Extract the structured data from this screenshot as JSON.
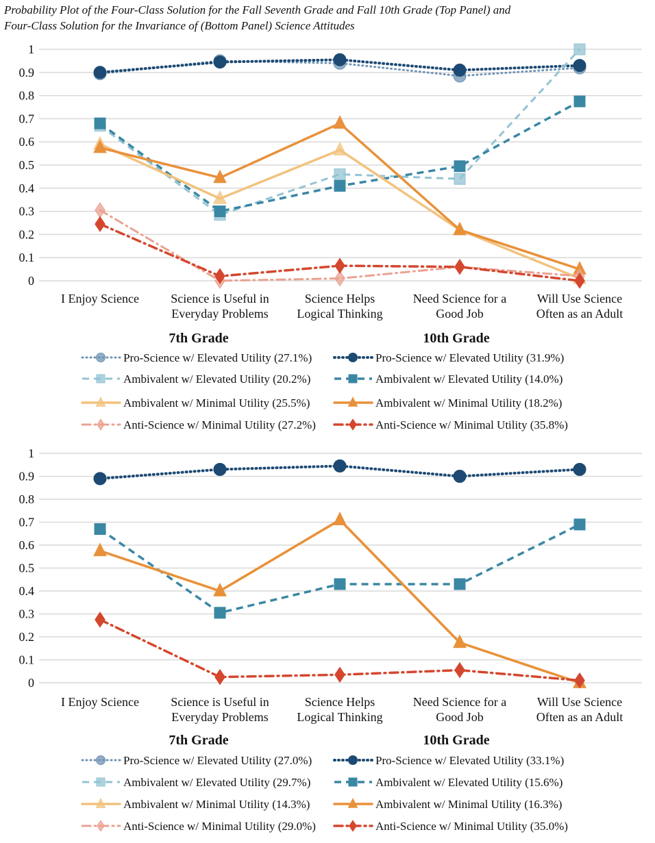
{
  "title_lines": [
    "Probability Plot of the Four-Class Solution for the Fall Seventh Grade and Fall 10th Grade (Top Panel) and",
    "Four-Class Solution for the Invariance of (Bottom Panel) Science Attitudes"
  ],
  "chart_data": [
    {
      "type": "line",
      "panel": "top",
      "categories": [
        [
          "I Enjoy Science"
        ],
        [
          "Science is Useful in",
          "Everyday Problems"
        ],
        [
          "Science Helps",
          "Logical Thinking"
        ],
        [
          "Need Science for a",
          "Good Job"
        ],
        [
          "Will Use Science",
          "Often as an Adult"
        ]
      ],
      "ylim": [
        0,
        1
      ],
      "yticks": [
        "0",
        "0.1",
        "0.2",
        "0.3",
        "0.4",
        "0.5",
        "0.6",
        "0.7",
        "0.8",
        "0.9",
        "1"
      ],
      "grid": true,
      "group_labels": [
        "7th Grade",
        "10th Grade"
      ],
      "legend_placement": "bottom",
      "series": [
        {
          "name": "Pro-Science w/ Elevated Utility (27.1%)",
          "group": "7th",
          "color": "#6f93b3",
          "marker": "circle",
          "dash": "dot",
          "width": 3,
          "values": [
            0.895,
            0.95,
            0.94,
            0.885,
            0.92
          ]
        },
        {
          "name": "Pro-Science w/ Elevated Utility (31.9%)",
          "group": "10th",
          "color": "#1d4a73",
          "marker": "circle",
          "dash": "dot",
          "width": 4,
          "values": [
            0.9,
            0.945,
            0.955,
            0.91,
            0.93
          ]
        },
        {
          "name": "Ambivalent w/ Elevated Utility (20.2%)",
          "group": "7th",
          "color": "#93c3d3",
          "marker": "square",
          "dash": "dash",
          "width": 3,
          "values": [
            0.67,
            0.285,
            0.46,
            0.44,
            1.0
          ]
        },
        {
          "name": "Ambivalent w/ Elevated Utility (14.0%)",
          "group": "10th",
          "color": "#3a87a3",
          "marker": "square",
          "dash": "dash",
          "width": 3.5,
          "values": [
            0.68,
            0.3,
            0.41,
            0.495,
            0.775
          ]
        },
        {
          "name": "Ambivalent w/ Minimal Utility (25.5%)",
          "group": "7th",
          "color": "#f2c27e",
          "marker": "triangle",
          "dash": "solid",
          "width": 3.5,
          "values": [
            0.59,
            0.355,
            0.565,
            0.22,
            0.01
          ]
        },
        {
          "name": "Ambivalent w/ Minimal Utility (18.2%)",
          "group": "10th",
          "color": "#e8913a",
          "marker": "triangle",
          "dash": "solid",
          "width": 3.5,
          "values": [
            0.575,
            0.445,
            0.68,
            0.22,
            0.05
          ]
        },
        {
          "name": "Anti-Science w/ Minimal Utility (27.2%)",
          "group": "7th",
          "color": "#eaa291",
          "marker": "diamond",
          "dash": "dashdot",
          "width": 3,
          "values": [
            0.305,
            0.0,
            0.01,
            0.06,
            0.02
          ]
        },
        {
          "name": "Anti-Science w/ Minimal Utility (35.8%)",
          "group": "10th",
          "color": "#d4472e",
          "marker": "diamond",
          "dash": "dashdot",
          "width": 3.5,
          "values": [
            0.245,
            0.02,
            0.065,
            0.06,
            0.0
          ]
        }
      ]
    },
    {
      "type": "line",
      "panel": "bottom",
      "categories": [
        [
          "I Enjoy Science"
        ],
        [
          "Science is Useful in",
          "Everyday Problems"
        ],
        [
          "Science Helps",
          "Logical Thinking"
        ],
        [
          "Need Science for a",
          "Good Job"
        ],
        [
          "Will Use Science",
          "Often as an Adult"
        ]
      ],
      "ylim": [
        0,
        1
      ],
      "yticks": [
        "0",
        "0.1",
        "0.2",
        "0.3",
        "0.4",
        "0.5",
        "0.6",
        "0.7",
        "0.8",
        "0.9",
        "1"
      ],
      "grid": true,
      "group_labels": [
        "7th Grade",
        "10th Grade"
      ],
      "legend_placement": "bottom",
      "series": [
        {
          "name": "Pro-Science w/ Elevated Utility (27.0%)",
          "group": "7th",
          "color": "#6f93b3",
          "marker": "circle",
          "dash": "dot",
          "width": 3,
          "values": [
            0.89,
            0.93,
            0.945,
            0.9,
            0.93
          ]
        },
        {
          "name": "Pro-Science w/ Elevated Utility (33.1%)",
          "group": "10th",
          "color": "#1d4a73",
          "marker": "circle",
          "dash": "dot",
          "width": 4,
          "values": [
            0.89,
            0.93,
            0.945,
            0.9,
            0.93
          ]
        },
        {
          "name": "Ambivalent w/ Elevated Utility (29.7%)",
          "group": "7th",
          "color": "#93c3d3",
          "marker": "square",
          "dash": "dash",
          "width": 3,
          "values": [
            0.67,
            0.305,
            0.43,
            0.43,
            0.69
          ]
        },
        {
          "name": "Ambivalent w/ Elevated Utility (15.6%)",
          "group": "10th",
          "color": "#3a87a3",
          "marker": "square",
          "dash": "dash",
          "width": 3.5,
          "values": [
            0.67,
            0.305,
            0.43,
            0.43,
            0.69
          ]
        },
        {
          "name": "Ambivalent w/ Minimal Utility (14.3%)",
          "group": "7th",
          "color": "#f2c27e",
          "marker": "triangle",
          "dash": "solid",
          "width": 3.5,
          "values": [
            0.575,
            0.4,
            0.71,
            0.175,
            0.0
          ]
        },
        {
          "name": "Ambivalent w/ Minimal Utility (16.3%)",
          "group": "10th",
          "color": "#e8913a",
          "marker": "triangle",
          "dash": "solid",
          "width": 3.5,
          "values": [
            0.575,
            0.4,
            0.71,
            0.175,
            0.0
          ]
        },
        {
          "name": "Anti-Science w/ Minimal Utility (29.0%)",
          "group": "7th",
          "color": "#eaa291",
          "marker": "diamond",
          "dash": "dashdot",
          "width": 3,
          "values": [
            0.275,
            0.025,
            0.035,
            0.055,
            0.01
          ]
        },
        {
          "name": "Anti-Science w/ Minimal Utility (35.0%)",
          "group": "10th",
          "color": "#d4472e",
          "marker": "diamond",
          "dash": "dashdot",
          "width": 3.5,
          "values": [
            0.275,
            0.025,
            0.035,
            0.055,
            0.01
          ]
        }
      ]
    }
  ]
}
